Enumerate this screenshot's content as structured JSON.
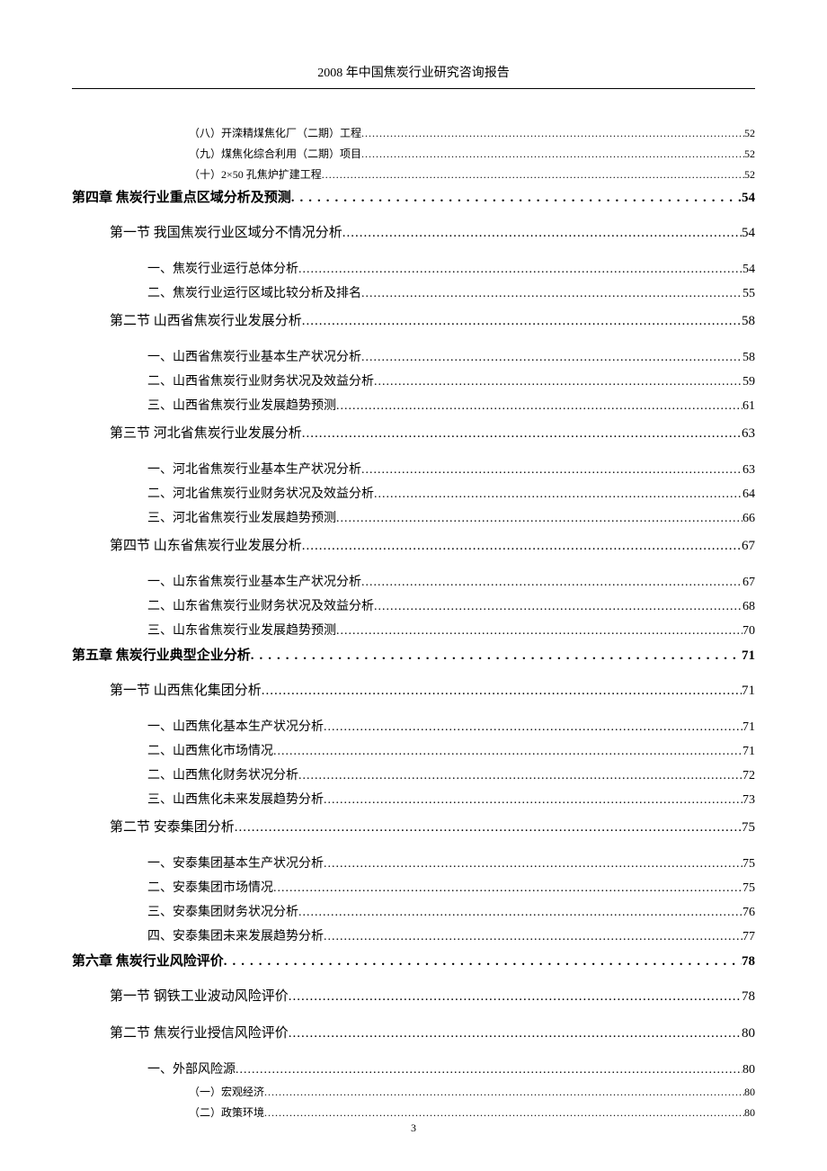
{
  "header": "2008 年中国焦炭行业研究咨询报告",
  "page_number": "3",
  "entries": [
    {
      "level": 3,
      "text": "（八）开滦精煤焦化厂（二期）工程",
      "page": "52"
    },
    {
      "level": 3,
      "text": "（九）煤焦化综合利用（二期）项目",
      "page": "52"
    },
    {
      "level": 3,
      "text": "（十）2×50 孔焦炉扩建工程",
      "page": "52"
    },
    {
      "level": 0,
      "text": "第四章 焦炭行业重点区域分析及预测",
      "page": "54"
    },
    {
      "level": 1,
      "text": "第一节  我国焦炭行业区域分不情况分析",
      "page": "54"
    },
    {
      "level": 2,
      "text": "一、焦炭行业运行总体分析",
      "page": "54"
    },
    {
      "level": 2,
      "text": "二、焦炭行业运行区域比较分析及排名",
      "page": "55"
    },
    {
      "level": 1,
      "text": "第二节  山西省焦炭行业发展分析",
      "page": "58"
    },
    {
      "level": 2,
      "text": "一、山西省焦炭行业基本生产状况分析",
      "page": "58"
    },
    {
      "level": 2,
      "text": "二、山西省焦炭行业财务状况及效益分析",
      "page": "59"
    },
    {
      "level": 2,
      "text": "三、山西省焦炭行业发展趋势预测",
      "page": "61"
    },
    {
      "level": 1,
      "text": "第三节  河北省焦炭行业发展分析",
      "page": "63"
    },
    {
      "level": 2,
      "text": "一、河北省焦炭行业基本生产状况分析",
      "page": "63"
    },
    {
      "level": 2,
      "text": "二、河北省焦炭行业财务状况及效益分析",
      "page": "64"
    },
    {
      "level": 2,
      "text": "三、河北省焦炭行业发展趋势预测",
      "page": "66"
    },
    {
      "level": 1,
      "text": "第四节  山东省焦炭行业发展分析",
      "page": "67"
    },
    {
      "level": 2,
      "text": "一、山东省焦炭行业基本生产状况分析",
      "page": "67"
    },
    {
      "level": 2,
      "text": "二、山东省焦炭行业财务状况及效益分析",
      "page": "68"
    },
    {
      "level": 2,
      "text": "三、山东省焦炭行业发展趋势预测",
      "page": "70"
    },
    {
      "level": 0,
      "text": "第五章 焦炭行业典型企业分析",
      "page": "71"
    },
    {
      "level": 1,
      "text": "第一节    山西焦化集团分析",
      "page": "71"
    },
    {
      "level": 2,
      "text": "一、山西焦化基本生产状况分析",
      "page": "71"
    },
    {
      "level": 2,
      "text": "二、山西焦化市场情况",
      "page": "71"
    },
    {
      "level": 2,
      "text": "二、山西焦化财务状况分析",
      "page": "72"
    },
    {
      "level": 2,
      "text": "三、山西焦化未来发展趋势分析",
      "page": "73"
    },
    {
      "level": 1,
      "text": "第二节    安泰集团分析",
      "page": "75"
    },
    {
      "level": 2,
      "text": "一、安泰集团基本生产状况分析",
      "page": "75"
    },
    {
      "level": 2,
      "text": "二、安泰集团市场情况",
      "page": "75"
    },
    {
      "level": 2,
      "text": "三、安泰集团财务状况分析",
      "page": "76"
    },
    {
      "level": 2,
      "text": "四、安泰集团未来发展趋势分析",
      "page": "77"
    },
    {
      "level": 0,
      "text": "第六章 焦炭行业风险评价",
      "page": "78"
    },
    {
      "level": 1,
      "text": "第一节  钢铁工业波动风险评价",
      "page": "78"
    },
    {
      "level": 1,
      "text": "第二节    焦炭行业授信风险评价",
      "page": "80"
    },
    {
      "level": 2,
      "text": "一、外部风险源",
      "page": "80"
    },
    {
      "level": 3,
      "text": "（一）宏观经济",
      "page": "80"
    },
    {
      "level": 3,
      "text": "（二）政策环境",
      "page": "80"
    }
  ]
}
